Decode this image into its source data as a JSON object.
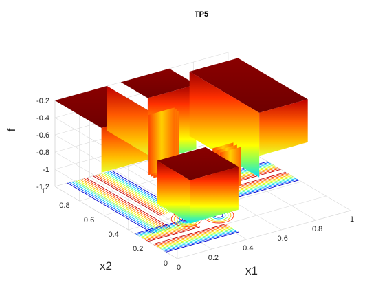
{
  "chart_data": {
    "type": "surface",
    "title": "TP5",
    "xlabel": "x1",
    "ylabel": "x2",
    "zlabel": "f",
    "xlim": [
      0,
      1
    ],
    "ylim": [
      0,
      1
    ],
    "zlim": [
      -1.2,
      -0.2
    ],
    "x_ticks": [
      "0",
      "0.2",
      "0.4",
      "0.6",
      "0.8",
      "1"
    ],
    "y_ticks": [
      "0",
      "0.2",
      "0.4",
      "0.6",
      "0.8",
      "1"
    ],
    "z_ticks": [
      "-1.2",
      "-1",
      "-0.8",
      "-0.6",
      "-0.4",
      "-0.2"
    ],
    "colormap": "jet",
    "contour_projection": true,
    "grid": true,
    "surface": {
      "plateau_value": -0.2,
      "plateau_corners": [
        "(0,1)",
        "(1,1)",
        "(1,0)",
        "(0.5,0.5)"
      ],
      "valley_min": -1.2,
      "valley_centers": [
        [
          0.35,
          0.4
        ],
        [
          0.45,
          0.3
        ],
        [
          0.3,
          0.35
        ],
        [
          0.4,
          0.45
        ]
      ]
    }
  }
}
